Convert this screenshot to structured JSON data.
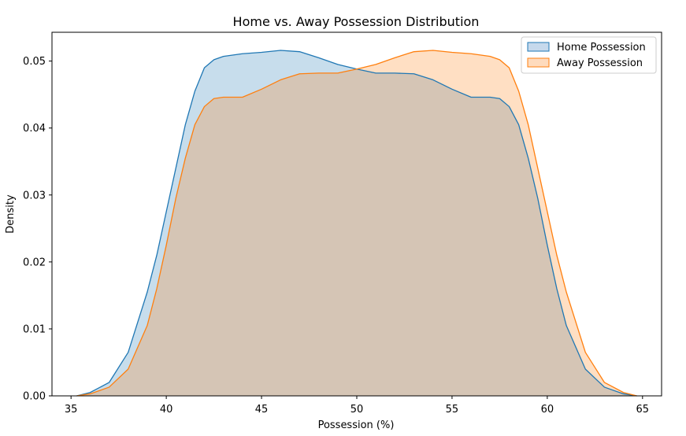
{
  "chart_data": {
    "type": "area",
    "title": "Home vs. Away Possession Distribution",
    "xlabel": "Possession (%)",
    "ylabel": "Density",
    "xlim": [
      34,
      66
    ],
    "ylim": [
      0,
      0.0543
    ],
    "x_ticks": [
      35,
      40,
      45,
      50,
      55,
      60,
      65
    ],
    "y_ticks": [
      0.0,
      0.01,
      0.02,
      0.03,
      0.04,
      0.05
    ],
    "x_tick_labels": [
      "35",
      "40",
      "45",
      "50",
      "55",
      "60",
      "65"
    ],
    "y_tick_labels": [
      "0.00",
      "0.01",
      "0.02",
      "0.03",
      "0.04",
      "0.05"
    ],
    "grid": false,
    "legend_position": "top-right",
    "series": [
      {
        "name": "Home Possession",
        "color": "#1f77b4",
        "fill": "#c6d9ec",
        "x": [
          35.3,
          36,
          37,
          38,
          39,
          39.5,
          40,
          40.5,
          41,
          41.5,
          42,
          42.5,
          43,
          44,
          45,
          46,
          47,
          48,
          49,
          50,
          51,
          52,
          53,
          54,
          55,
          56,
          57,
          57.5,
          58,
          58.5,
          59,
          59.5,
          60,
          60.5,
          61,
          62,
          63,
          64,
          64.7
        ],
        "y": [
          0.0,
          0.0005,
          0.002,
          0.0065,
          0.0155,
          0.021,
          0.0275,
          0.034,
          0.0405,
          0.0455,
          0.049,
          0.0502,
          0.0507,
          0.0511,
          0.0513,
          0.0516,
          0.0514,
          0.0505,
          0.0495,
          0.0488,
          0.0482,
          0.0482,
          0.0481,
          0.0472,
          0.0458,
          0.0446,
          0.0446,
          0.0444,
          0.0432,
          0.0405,
          0.0355,
          0.0295,
          0.0225,
          0.016,
          0.0105,
          0.004,
          0.0013,
          0.0003,
          0.0
        ]
      },
      {
        "name": "Away Possession",
        "color": "#ff7f0e",
        "fill": "#fedbbd",
        "x": [
          35.3,
          36,
          37,
          38,
          39,
          39.5,
          40,
          40.5,
          41,
          41.5,
          42,
          42.5,
          43,
          44,
          45,
          46,
          47,
          48,
          49,
          50,
          51,
          52,
          53,
          54,
          55,
          56,
          57,
          57.5,
          58,
          58.5,
          59,
          59.5,
          60,
          60.5,
          61,
          62,
          63,
          64,
          64.7
        ],
        "y": [
          0.0,
          0.0003,
          0.0013,
          0.004,
          0.0105,
          0.016,
          0.0225,
          0.0295,
          0.0355,
          0.0405,
          0.0432,
          0.0444,
          0.0446,
          0.0446,
          0.0458,
          0.0472,
          0.0481,
          0.0482,
          0.0482,
          0.0488,
          0.0495,
          0.0505,
          0.0514,
          0.0516,
          0.0513,
          0.0511,
          0.0507,
          0.0502,
          0.049,
          0.0455,
          0.0405,
          0.034,
          0.0275,
          0.021,
          0.0155,
          0.0065,
          0.002,
          0.0005,
          0.0
        ]
      }
    ]
  }
}
